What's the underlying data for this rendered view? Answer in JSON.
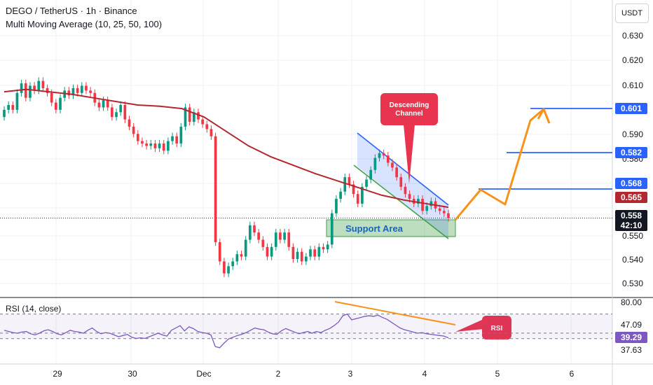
{
  "header": {
    "title": "DEGO / TetherUS · 1h · Binance",
    "indicator": "Multi Moving Average (10, 25, 50, 100)",
    "currency": "USDT"
  },
  "colors": {
    "up": "#089981",
    "down": "#f23645",
    "ma": "#b2282e",
    "channel": "#2962ff",
    "support": "#43a047",
    "projection": "#f7931a",
    "rsi": "#7e57c2",
    "callout": "#e8344e",
    "grid": "#e0e3eb",
    "axis_text": "#131722",
    "target_label": "#2962ff"
  },
  "chart_data": {
    "type": "candlestick",
    "x_ticks": [
      "29",
      "30",
      "Dec",
      "2",
      "3",
      "4",
      "5",
      "6"
    ],
    "y_ticks": [
      "0.630",
      "0.620",
      "0.610",
      "0.590",
      "0.580",
      "0.550",
      "0.540",
      "0.530"
    ],
    "ylim": [
      0.525,
      0.637
    ],
    "candles": [
      [
        0.6,
        0.603
      ],
      [
        0.603,
        0.605
      ],
      [
        0.605,
        0.603
      ],
      [
        0.603,
        0.61
      ],
      [
        0.61,
        0.614
      ],
      [
        0.614,
        0.608
      ],
      [
        0.608,
        0.613
      ],
      [
        0.613,
        0.611
      ],
      [
        0.611,
        0.615
      ],
      [
        0.615,
        0.612
      ],
      [
        0.612,
        0.61
      ],
      [
        0.61,
        0.606
      ],
      [
        0.606,
        0.603
      ],
      [
        0.603,
        0.608
      ],
      [
        0.608,
        0.611
      ],
      [
        0.611,
        0.609
      ],
      [
        0.609,
        0.612
      ],
      [
        0.612,
        0.61
      ],
      [
        0.61,
        0.613
      ],
      [
        0.613,
        0.611
      ],
      [
        0.611,
        0.61
      ],
      [
        0.61,
        0.606
      ],
      [
        0.606,
        0.604
      ],
      [
        0.604,
        0.607
      ],
      [
        0.607,
        0.604
      ],
      [
        0.604,
        0.6
      ],
      [
        0.6,
        0.602
      ],
      [
        0.602,
        0.605
      ],
      [
        0.605,
        0.599
      ],
      [
        0.599,
        0.596
      ],
      [
        0.596,
        0.593
      ],
      [
        0.593,
        0.59
      ],
      [
        0.59,
        0.589
      ],
      [
        0.589,
        0.588
      ],
      [
        0.588,
        0.589
      ],
      [
        0.589,
        0.587
      ],
      [
        0.587,
        0.589
      ],
      [
        0.589,
        0.586
      ],
      [
        0.586,
        0.59
      ],
      [
        0.59,
        0.592
      ],
      [
        0.592,
        0.589
      ],
      [
        0.589,
        0.596
      ],
      [
        0.596,
        0.604
      ],
      [
        0.604,
        0.598
      ],
      [
        0.598,
        0.602
      ],
      [
        0.602,
        0.599
      ],
      [
        0.599,
        0.597
      ],
      [
        0.597,
        0.595
      ],
      [
        0.595,
        0.592
      ],
      [
        0.592,
        0.548
      ],
      [
        0.548,
        0.54
      ],
      [
        0.54,
        0.535
      ],
      [
        0.535,
        0.538
      ],
      [
        0.538,
        0.54
      ],
      [
        0.54,
        0.543
      ],
      [
        0.543,
        0.542
      ],
      [
        0.542,
        0.549
      ],
      [
        0.549,
        0.555
      ],
      [
        0.555,
        0.552
      ],
      [
        0.552,
        0.549
      ],
      [
        0.549,
        0.546
      ],
      [
        0.546,
        0.542
      ],
      [
        0.542,
        0.546
      ],
      [
        0.546,
        0.552
      ],
      [
        0.552,
        0.549
      ],
      [
        0.549,
        0.552
      ],
      [
        0.552,
        0.546
      ],
      [
        0.546,
        0.541
      ],
      [
        0.541,
        0.544
      ],
      [
        0.544,
        0.54
      ],
      [
        0.54,
        0.542
      ],
      [
        0.542,
        0.545
      ],
      [
        0.545,
        0.542
      ],
      [
        0.542,
        0.546
      ],
      [
        0.546,
        0.545
      ],
      [
        0.545,
        0.547
      ],
      [
        0.547,
        0.56
      ],
      [
        0.56,
        0.566
      ],
      [
        0.566,
        0.569
      ],
      [
        0.569,
        0.575
      ],
      [
        0.575,
        0.572
      ],
      [
        0.572,
        0.568
      ],
      [
        0.568,
        0.564
      ],
      [
        0.564,
        0.571
      ],
      [
        0.571,
        0.574
      ],
      [
        0.574,
        0.578
      ],
      [
        0.578,
        0.583
      ],
      [
        0.583,
        0.585
      ],
      [
        0.585,
        0.584
      ],
      [
        0.584,
        0.581
      ],
      [
        0.581,
        0.579
      ],
      [
        0.579,
        0.575
      ],
      [
        0.575,
        0.571
      ],
      [
        0.571,
        0.568
      ],
      [
        0.568,
        0.566
      ],
      [
        0.566,
        0.564
      ],
      [
        0.564,
        0.566
      ],
      [
        0.566,
        0.561
      ],
      [
        0.561,
        0.563
      ],
      [
        0.563,
        0.565
      ],
      [
        0.565,
        0.562
      ],
      [
        0.562,
        0.561
      ],
      [
        0.561,
        0.56
      ],
      [
        0.56,
        0.558
      ]
    ],
    "moving_average": {
      "x": [
        0,
        0.05,
        0.1,
        0.15,
        0.2,
        0.25,
        0.3,
        0.35,
        0.4,
        0.45,
        0.5,
        0.55,
        0.6,
        0.65,
        0.7,
        0.75,
        0.8,
        0.85,
        0.9,
        0.95,
        1
      ],
      "values": [
        0.6105,
        0.6115,
        0.6105,
        0.6095,
        0.608,
        0.6065,
        0.605,
        0.6045,
        0.6035,
        0.6,
        0.594,
        0.588,
        0.5835,
        0.58,
        0.5765,
        0.5735,
        0.5705,
        0.5675,
        0.5655,
        0.564,
        0.5625
      ]
    },
    "price_labels": [
      {
        "value": "0.601",
        "kind": "target"
      },
      {
        "value": "0.582",
        "kind": "target"
      },
      {
        "value": "0.568",
        "kind": "target"
      },
      {
        "value": "0.565",
        "kind": "ma"
      },
      {
        "value": "0.558",
        "kind": "last"
      },
      {
        "value": "42:10",
        "kind": "countdown"
      }
    ],
    "annotations": {
      "descending_channel": "Descending\nChannel",
      "support_area": "Support Area",
      "rsi_callout": "RSI"
    },
    "rsi": {
      "title": "RSI (14, close)",
      "levels": [
        "80.00",
        "47.09",
        "37.63"
      ],
      "current": "39.29",
      "values": [
        52,
        50,
        48,
        47,
        49,
        50,
        46,
        44,
        47,
        51,
        53,
        50,
        46,
        44,
        48,
        52,
        50,
        49,
        47,
        52,
        56,
        50,
        46,
        48,
        47,
        44,
        41,
        43,
        45,
        40,
        38,
        39,
        38,
        41,
        44,
        47,
        44,
        42,
        52,
        56,
        60,
        51,
        58,
        55,
        50,
        48,
        47,
        44,
        24,
        22,
        30,
        37,
        40,
        43,
        45,
        48,
        52,
        56,
        54,
        53,
        49,
        46,
        45,
        51,
        55,
        52,
        49,
        46,
        48,
        50,
        47,
        50,
        48,
        52,
        55,
        60,
        66,
        77,
        80,
        70,
        72,
        74,
        76,
        77,
        76,
        78,
        74,
        71,
        66,
        61,
        56,
        53,
        51,
        49,
        47,
        48,
        46,
        45,
        44,
        43,
        42,
        39
      ]
    }
  }
}
